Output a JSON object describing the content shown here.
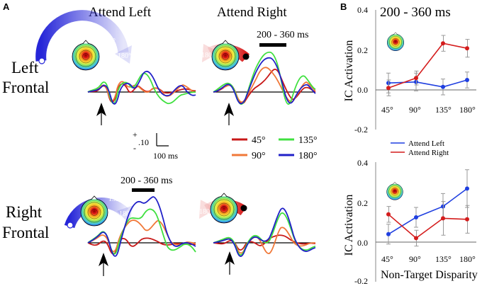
{
  "panels": {
    "a": "A",
    "b": "B"
  },
  "columns": {
    "left": "Attend Left",
    "right": "Attend Right"
  },
  "rows": {
    "left_frontal": [
      "Left",
      "Frontal"
    ],
    "right_frontal": [
      "Right",
      "Frontal"
    ]
  },
  "window_label": "200 - 360 ms",
  "angle_labels": {
    "deg90": "90°",
    "deg135": "135°",
    "deg45": "45°",
    "deg180": "180°"
  },
  "scale_bar": {
    "plus": "+",
    "minus": "-",
    "amplitude": ".10",
    "time": "100 ms"
  },
  "erp_legend": [
    {
      "label": "45°",
      "color": "#c81818"
    },
    {
      "label": "135°",
      "color": "#40e040"
    },
    {
      "label": "90°",
      "color": "#f07838"
    },
    {
      "label": "180°",
      "color": "#2020c8"
    }
  ],
  "chart_data": [
    {
      "type": "line",
      "title": "200 - 360 ms",
      "xlabel": "",
      "ylabel": "IC Activation",
      "categories": [
        "45°",
        "90°",
        "135°",
        "180°"
      ],
      "yticks": [
        "0.4",
        "0.2",
        "0.0",
        "-0.2"
      ],
      "ylim": [
        -0.2,
        0.4
      ],
      "series": [
        {
          "name": "Attend Left",
          "color": "#1f3fe0",
          "values": [
            0.035,
            0.04,
            0.015,
            0.05
          ],
          "err": [
            0.05,
            0.045,
            0.04,
            0.04
          ]
        },
        {
          "name": "Attend Right",
          "color": "#d41c1c",
          "values": [
            0.01,
            0.06,
            0.235,
            0.21
          ],
          "err": [
            0.04,
            0.035,
            0.04,
            0.045
          ]
        }
      ]
    },
    {
      "type": "line",
      "title": "",
      "xlabel": "Non-Target Disparity",
      "ylabel": "IC Activation",
      "categories": [
        "45°",
        "90°",
        "135°",
        "180°"
      ],
      "yticks": [
        "0.4",
        "0.2",
        "0.0",
        "-0.2"
      ],
      "ylim": [
        -0.2,
        0.4
      ],
      "series": [
        {
          "name": "Attend Left",
          "color": "#1f3fe0",
          "values": [
            0.04,
            0.125,
            0.18,
            0.27
          ],
          "err": [
            0.05,
            0.05,
            0.065,
            0.095
          ]
        },
        {
          "name": "Attend Right",
          "color": "#d41c1c",
          "values": [
            0.14,
            0.02,
            0.12,
            0.115
          ],
          "err": [
            0.04,
            0.04,
            0.085,
            0.07
          ]
        }
      ]
    }
  ]
}
